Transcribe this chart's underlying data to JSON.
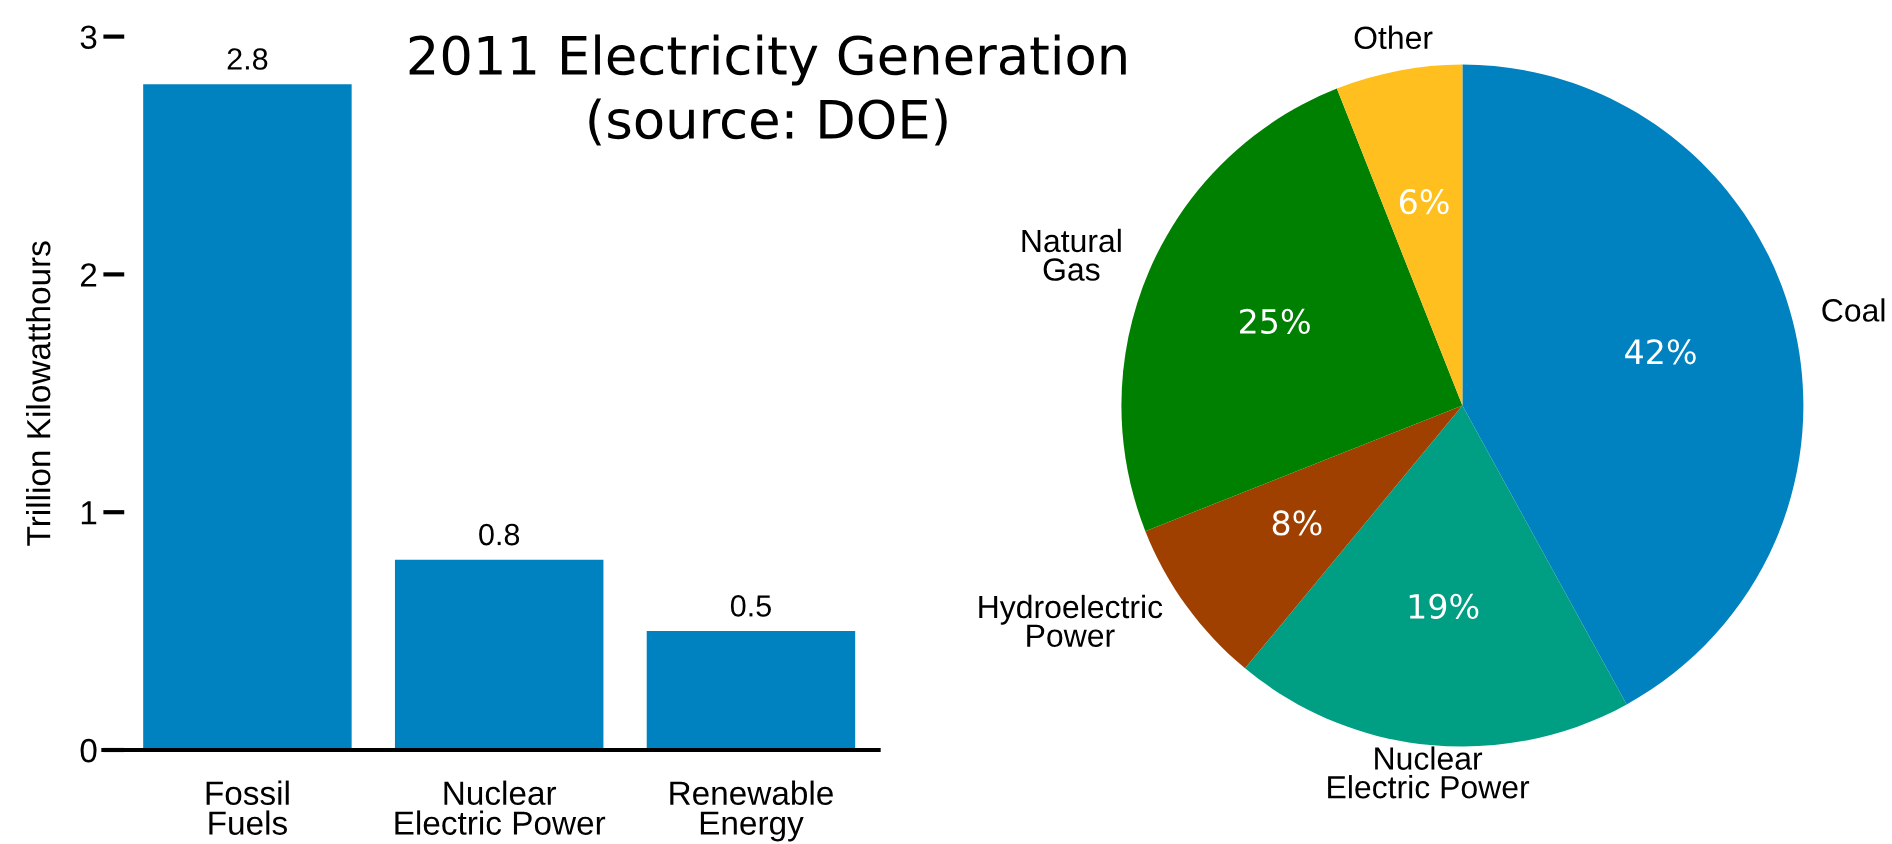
{
  "chart_data": [
    {
      "type": "bar",
      "title": "2011 Electricity Generation",
      "annotations": [
        "(source: DOE)"
      ],
      "ylabel": "Trillion Kilowatthours",
      "categories": [
        "Fossil\nFuels",
        "Nuclear\nElectric Power",
        "Renewable\nEnergy"
      ],
      "values": [
        2.8,
        0.8,
        0.5
      ],
      "color": "#0082c0",
      "ylim": [
        0,
        3
      ],
      "yticks": [
        0,
        1,
        2,
        3
      ],
      "data_labels": true
    },
    {
      "type": "pie",
      "categories": [
        "Coal",
        "Nuclear\nElectric Power",
        "Hydroelectric\nPower",
        "Natural\nGas",
        "Other"
      ],
      "values": [
        42,
        19,
        8,
        25,
        6
      ],
      "colors": [
        "#0082c0",
        "#009e82",
        "#a04000",
        "#008000",
        "#ffbf1f"
      ],
      "value_labels": [
        "42%",
        "19%",
        "8%",
        "25%",
        "6%"
      ]
    }
  ]
}
